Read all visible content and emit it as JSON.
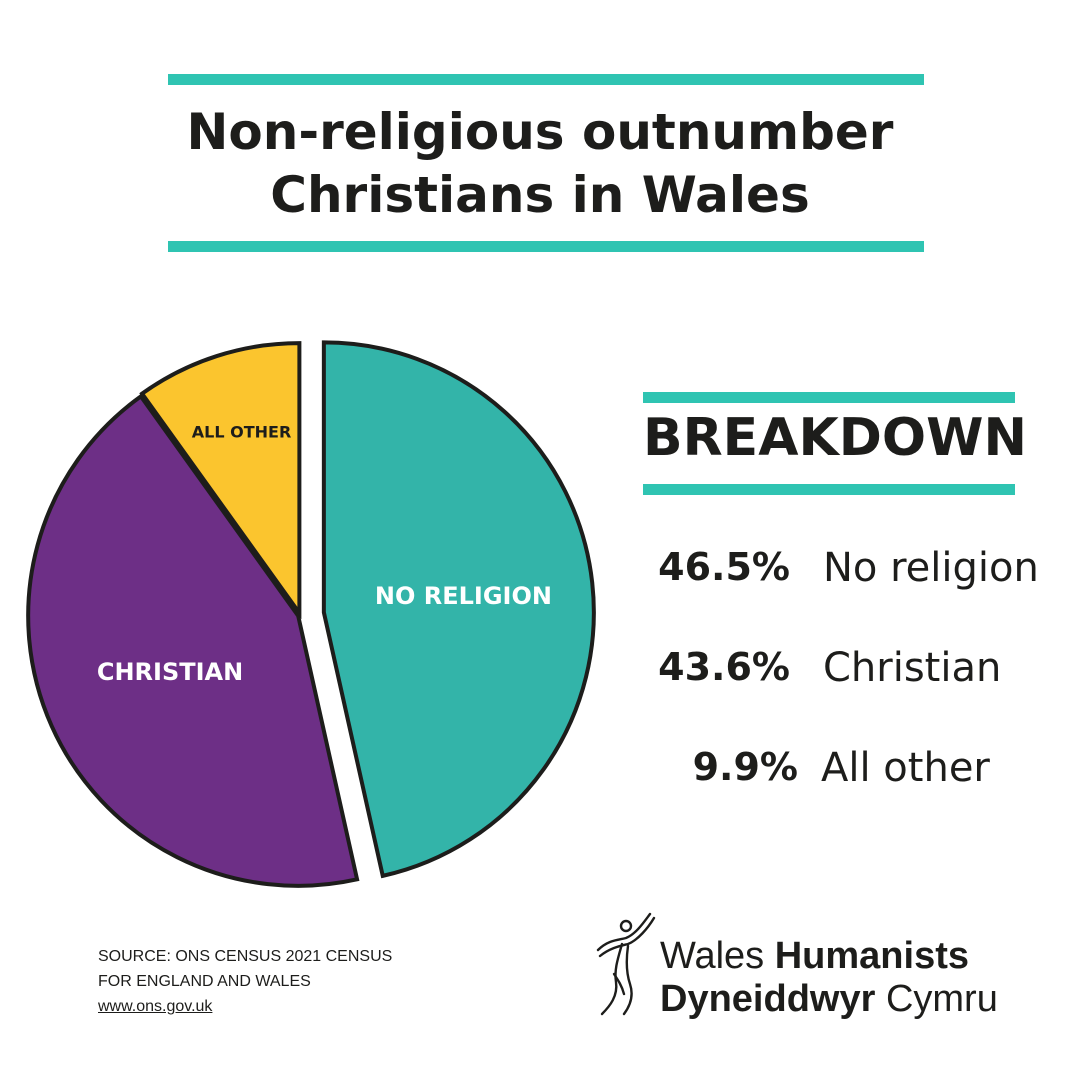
{
  "title": {
    "line1": "Non-religious outnumber",
    "line2": "Christians in Wales"
  },
  "colors": {
    "accent": "#2fc4b2",
    "no_religion": "#33b4a9",
    "christian": "#6d2f86",
    "all_other": "#fbc52e",
    "outline": "#1d1d1b",
    "slice_text_dark": "#1d1d1b",
    "slice_text_light": "#ffffff"
  },
  "chart_data": {
    "type": "pie",
    "slices": [
      {
        "label": "NO RELIGION",
        "value": 46.5,
        "color": "#33b4a9",
        "text_color": "#ffffff",
        "exploded": true
      },
      {
        "label": "CHRISTIAN",
        "value": 43.6,
        "color": "#6d2f86",
        "text_color": "#ffffff",
        "exploded": false
      },
      {
        "label": "ALL OTHER",
        "value": 9.9,
        "color": "#fbc52e",
        "text_color": "#1d1d1b",
        "exploded": false
      }
    ]
  },
  "breakdown": {
    "heading": "BREAKDOWN",
    "rows": [
      {
        "pct": "46.5%",
        "label": "No religion"
      },
      {
        "pct": "43.6%",
        "label": "Christian"
      },
      {
        "pct": "9.9%",
        "label": "All other"
      }
    ]
  },
  "source": {
    "line1": "SOURCE:  ONS CENSUS 2021 CENSUS",
    "line2": "FOR ENGLAND AND WALES",
    "url": "www.ons.gov.uk"
  },
  "logo": {
    "icon": "humanist-figure-icon",
    "line1_regular": "Wales ",
    "line1_bold": "Humanists",
    "line2_bold": "Dyneiddwyr ",
    "line2_regular": "Cymru"
  }
}
